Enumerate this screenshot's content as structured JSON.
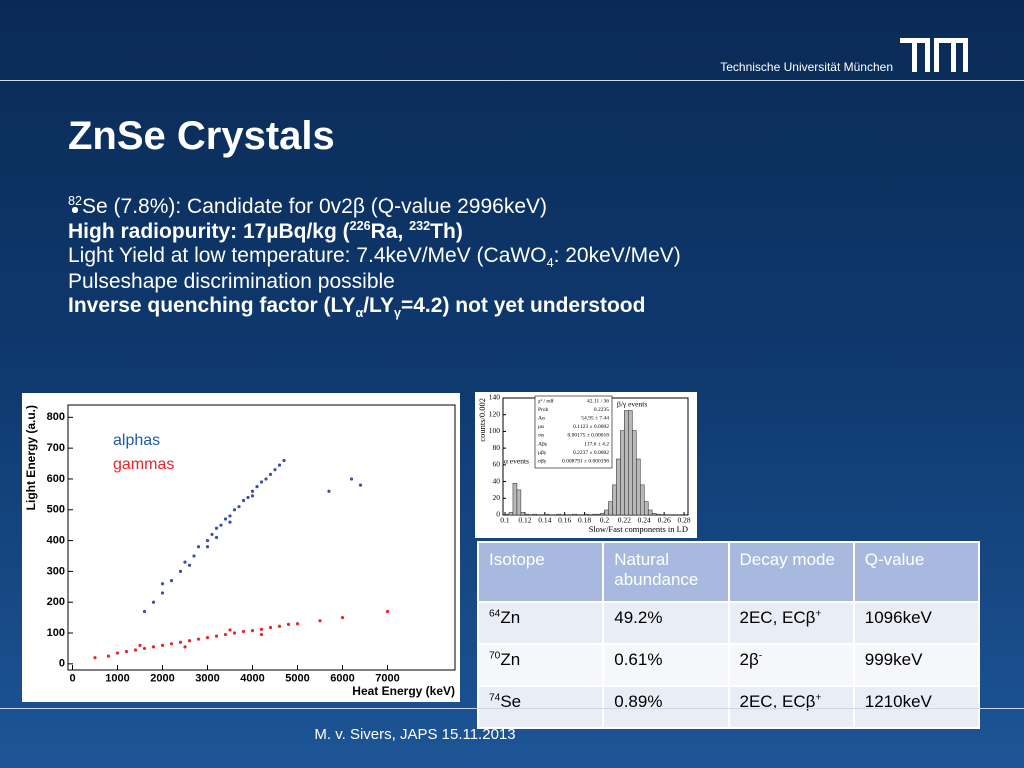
{
  "header": {
    "institution": "Technische Universität München"
  },
  "title": "ZnSe Crystals",
  "bullets": [
    {
      "bold": false,
      "segments": [
        {
          "text": "82",
          "sup": true
        },
        {
          "text": "Se (7.8%): Candidate for 0v2β (Q-value 2996keV)"
        }
      ]
    },
    {
      "bold": true,
      "segments": [
        {
          "text": "High radiopurity: 17µBq/kg ("
        },
        {
          "text": "226",
          "sup": true
        },
        {
          "text": "Ra, "
        },
        {
          "text": "232",
          "sup": true
        },
        {
          "text": "Th)"
        }
      ]
    },
    {
      "bold": false,
      "segments": [
        {
          "text": "Light Yield at low temperature: 7.4keV/MeV (CaWO"
        },
        {
          "text": "4",
          "sub": true
        },
        {
          "text": ": 20keV/MeV)"
        }
      ]
    },
    {
      "bold": false,
      "segments": [
        {
          "text": "Pulseshape discrimination possible"
        }
      ]
    },
    {
      "bold": true,
      "segments": [
        {
          "text": "Inverse quenching factor (LY"
        },
        {
          "text": "α",
          "sub": true
        },
        {
          "text": "/LY"
        },
        {
          "text": "γ",
          "sub": true
        },
        {
          "text": "=4.2) not yet understood"
        }
      ]
    }
  ],
  "table": {
    "header": [
      "Isotope",
      "Natural abundance",
      "Decay mode",
      "Q-value"
    ],
    "rows": [
      [
        [
          {
            "text": "64",
            "sup": true
          },
          {
            "text": "Zn"
          }
        ],
        [
          {
            "text": "49.2%"
          }
        ],
        [
          {
            "text": "2EC, ECβ"
          },
          {
            "text": "+",
            "sup": true
          }
        ],
        [
          {
            "text": "1096keV"
          }
        ]
      ],
      [
        [
          {
            "text": "70",
            "sup": true
          },
          {
            "text": "Zn"
          }
        ],
        [
          {
            "text": "0.61%"
          }
        ],
        [
          {
            "text": "2β"
          },
          {
            "text": "-",
            "sup": true
          }
        ],
        [
          {
            "text": "999keV"
          }
        ]
      ],
      [
        [
          {
            "text": "74",
            "sup": true
          },
          {
            "text": "Se"
          }
        ],
        [
          {
            "text": "0.89%"
          }
        ],
        [
          {
            "text": "2EC, ECβ"
          },
          {
            "text": "+",
            "sup": true
          }
        ],
        [
          {
            "text": "1210keV"
          }
        ]
      ]
    ]
  },
  "footer": "M. v. Sivers, JAPS 15.11.2013",
  "chart_data": [
    {
      "type": "scatter",
      "x_label": "Heat Energy (keV)",
      "y_label": "Light Energy (a.u.)",
      "xlim": [
        -100,
        8500
      ],
      "ylim": [
        -20,
        840
      ],
      "xticks": [
        0,
        1000,
        2000,
        3000,
        4000,
        5000,
        6000,
        7000
      ],
      "yticks": [
        0,
        100,
        200,
        300,
        400,
        500,
        600,
        700,
        800
      ],
      "series": [
        {
          "name": "alphas",
          "color": "#3a4fb0",
          "label_color": "#1f5aa8",
          "x": [
            1600,
            1800,
            2000,
            2200,
            2400,
            2500,
            2700,
            2800,
            3000,
            3100,
            3200,
            3300,
            3400,
            3500,
            3600,
            3700,
            3800,
            3900,
            4000,
            4100,
            4200,
            4300,
            4400,
            4500,
            4600,
            4700,
            3000,
            3500,
            4000,
            2600,
            2000,
            3200,
            6200,
            6400,
            5700
          ],
          "y": [
            170,
            200,
            230,
            270,
            300,
            330,
            350,
            380,
            400,
            420,
            440,
            450,
            470,
            480,
            500,
            510,
            530,
            540,
            560,
            575,
            590,
            600,
            615,
            630,
            645,
            660,
            380,
            460,
            545,
            320,
            260,
            410,
            600,
            580,
            560
          ]
        },
        {
          "name": "gammas",
          "color": "#e8262a",
          "label_color": "#e8262a",
          "x": [
            500,
            800,
            1000,
            1200,
            1400,
            1600,
            1800,
            2000,
            2200,
            2400,
            2600,
            2800,
            3000,
            3200,
            3400,
            3600,
            3800,
            4000,
            4200,
            4400,
            4600,
            4800,
            5000,
            5500,
            1500,
            2500,
            3500,
            4200,
            6000,
            7000
          ],
          "y": [
            20,
            25,
            35,
            40,
            45,
            50,
            55,
            60,
            65,
            70,
            75,
            80,
            85,
            90,
            95,
            100,
            105,
            108,
            112,
            118,
            122,
            128,
            130,
            140,
            60,
            55,
            110,
            95,
            150,
            170
          ]
        }
      ]
    },
    {
      "type": "histogram",
      "x_label": "Slow/Fast components in LD",
      "y_label": "counts/0.002",
      "xlim": [
        0.098,
        0.284
      ],
      "ylim": [
        0,
        140
      ],
      "xticks": [
        0.1,
        0.12,
        0.14,
        0.16,
        0.18,
        0.2,
        0.22,
        0.24,
        0.26,
        0.28
      ],
      "yticks": [
        0,
        20,
        40,
        60,
        80,
        100,
        120,
        140
      ],
      "color": "#b8b8b8",
      "annotations": [
        "β/γ events",
        "α events"
      ],
      "stats": [
        {
          "name": "χ² / ndf",
          "value": "42.11 / 36"
        },
        {
          "name": "Prob",
          "value": "0.2235"
        },
        {
          "name": "Aα",
          "value": "54.95 ± 7.44"
        },
        {
          "name": "μα",
          "value": "0.1123 ± 0.0002"
        },
        {
          "name": "σα",
          "value": "0.00175 ± 0.00018"
        },
        {
          "name": "Aβγ",
          "value": "117.6 ± 4.2"
        },
        {
          "name": "μβγ",
          "value": "0.2237 ± 0.0002"
        },
        {
          "name": "σβγ",
          "value": "0.008791 ± 0.000198"
        }
      ],
      "bins": [
        0.1,
        0.104,
        0.108,
        0.112,
        0.116,
        0.12,
        0.124,
        0.128,
        0.132,
        0.136,
        0.14,
        0.144,
        0.148,
        0.152,
        0.156,
        0.16,
        0.164,
        0.168,
        0.172,
        0.176,
        0.18,
        0.184,
        0.188,
        0.192,
        0.196,
        0.2,
        0.204,
        0.208,
        0.212,
        0.216,
        0.22,
        0.224,
        0.228,
        0.232,
        0.236,
        0.24,
        0.244,
        0.248,
        0.252,
        0.256,
        0.26,
        0.264,
        0.268,
        0.272,
        0.276,
        0.28
      ],
      "counts": [
        1,
        3,
        38,
        30,
        3,
        1,
        0,
        1,
        0,
        0,
        1,
        0,
        0,
        1,
        0,
        0,
        0,
        1,
        0,
        0,
        1,
        0,
        1,
        1,
        2,
        6,
        16,
        36,
        67,
        101,
        125,
        125,
        101,
        67,
        36,
        16,
        6,
        2,
        1,
        0,
        0,
        0,
        0,
        0,
        0
      ]
    }
  ]
}
